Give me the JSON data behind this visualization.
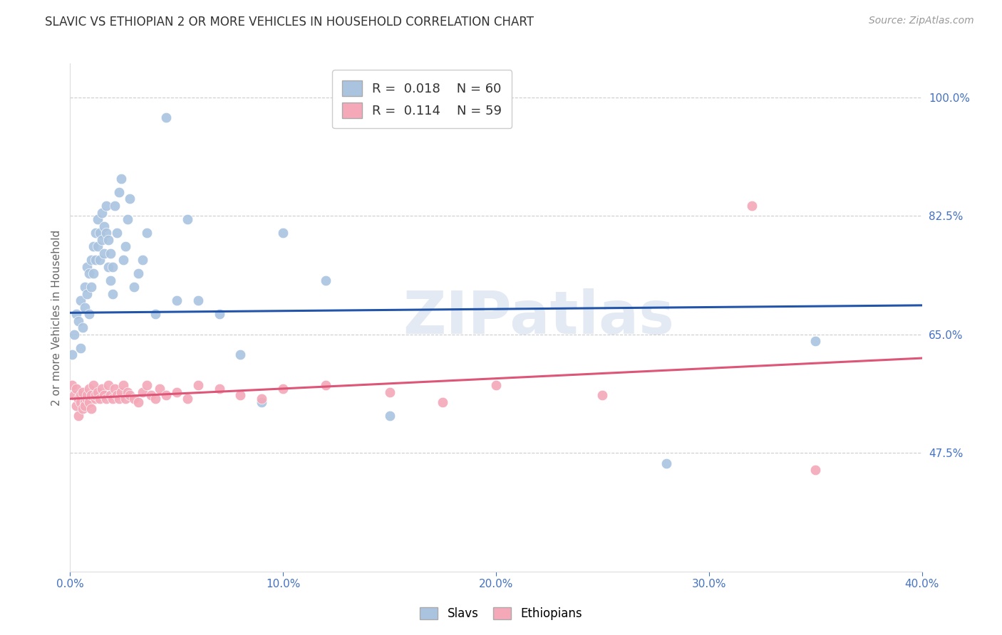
{
  "title": "SLAVIC VS ETHIOPIAN 2 OR MORE VEHICLES IN HOUSEHOLD CORRELATION CHART",
  "source": "Source: ZipAtlas.com",
  "ylabel": "2 or more Vehicles in Household",
  "xlim": [
    0.0,
    0.4
  ],
  "ylim": [
    0.3,
    1.05
  ],
  "xticks": [
    0.0,
    0.1,
    0.2,
    0.3,
    0.4
  ],
  "xtick_labels": [
    "0.0%",
    "10.0%",
    "20.0%",
    "30.0%",
    "40.0%"
  ],
  "ytick_labels": [
    "100.0%",
    "82.5%",
    "65.0%",
    "47.5%"
  ],
  "ytick_values": [
    1.0,
    0.825,
    0.65,
    0.475
  ],
  "background_color": "#ffffff",
  "grid_color": "#cccccc",
  "slavs_color": "#aac4e0",
  "ethiopians_color": "#f4a8b8",
  "slavs_line_color": "#2255aa",
  "ethiopians_line_color": "#dd5577",
  "legend_R_slavs": "0.018",
  "legend_N_slavs": "60",
  "legend_R_ethiopians": "0.114",
  "legend_N_ethiopians": "59",
  "axis_color": "#4472c4",
  "watermark": "ZIPatlas",
  "slavs_x": [
    0.001,
    0.002,
    0.003,
    0.004,
    0.005,
    0.005,
    0.006,
    0.007,
    0.007,
    0.008,
    0.008,
    0.009,
    0.009,
    0.01,
    0.01,
    0.011,
    0.011,
    0.012,
    0.012,
    0.013,
    0.013,
    0.014,
    0.014,
    0.015,
    0.015,
    0.016,
    0.016,
    0.017,
    0.017,
    0.018,
    0.018,
    0.019,
    0.019,
    0.02,
    0.02,
    0.021,
    0.022,
    0.023,
    0.024,
    0.025,
    0.026,
    0.027,
    0.028,
    0.03,
    0.032,
    0.034,
    0.036,
    0.04,
    0.045,
    0.05,
    0.055,
    0.06,
    0.07,
    0.08,
    0.09,
    0.1,
    0.12,
    0.15,
    0.28,
    0.35
  ],
  "slavs_y": [
    0.62,
    0.65,
    0.68,
    0.67,
    0.7,
    0.63,
    0.66,
    0.72,
    0.69,
    0.75,
    0.71,
    0.74,
    0.68,
    0.76,
    0.72,
    0.78,
    0.74,
    0.8,
    0.76,
    0.82,
    0.78,
    0.8,
    0.76,
    0.83,
    0.79,
    0.77,
    0.81,
    0.84,
    0.8,
    0.75,
    0.79,
    0.73,
    0.77,
    0.71,
    0.75,
    0.84,
    0.8,
    0.86,
    0.88,
    0.76,
    0.78,
    0.82,
    0.85,
    0.72,
    0.74,
    0.76,
    0.8,
    0.68,
    0.97,
    0.7,
    0.82,
    0.7,
    0.68,
    0.62,
    0.55,
    0.8,
    0.73,
    0.53,
    0.46,
    0.64
  ],
  "ethiopians_x": [
    0.001,
    0.002,
    0.003,
    0.003,
    0.004,
    0.004,
    0.005,
    0.005,
    0.006,
    0.006,
    0.007,
    0.007,
    0.008,
    0.008,
    0.009,
    0.009,
    0.01,
    0.01,
    0.011,
    0.012,
    0.012,
    0.013,
    0.014,
    0.015,
    0.016,
    0.017,
    0.018,
    0.019,
    0.02,
    0.021,
    0.022,
    0.023,
    0.024,
    0.025,
    0.026,
    0.027,
    0.028,
    0.03,
    0.032,
    0.034,
    0.036,
    0.038,
    0.04,
    0.042,
    0.045,
    0.05,
    0.055,
    0.06,
    0.07,
    0.08,
    0.09,
    0.1,
    0.12,
    0.15,
    0.175,
    0.2,
    0.25,
    0.32,
    0.35
  ],
  "ethiopians_y": [
    0.575,
    0.56,
    0.57,
    0.545,
    0.555,
    0.53,
    0.56,
    0.55,
    0.54,
    0.565,
    0.55,
    0.545,
    0.555,
    0.56,
    0.57,
    0.55,
    0.54,
    0.56,
    0.575,
    0.555,
    0.56,
    0.565,
    0.555,
    0.57,
    0.56,
    0.555,
    0.575,
    0.56,
    0.555,
    0.57,
    0.56,
    0.555,
    0.565,
    0.575,
    0.555,
    0.565,
    0.56,
    0.555,
    0.55,
    0.565,
    0.575,
    0.56,
    0.555,
    0.57,
    0.56,
    0.565,
    0.555,
    0.575,
    0.57,
    0.56,
    0.555,
    0.57,
    0.575,
    0.565,
    0.55,
    0.575,
    0.56,
    0.84,
    0.45
  ]
}
